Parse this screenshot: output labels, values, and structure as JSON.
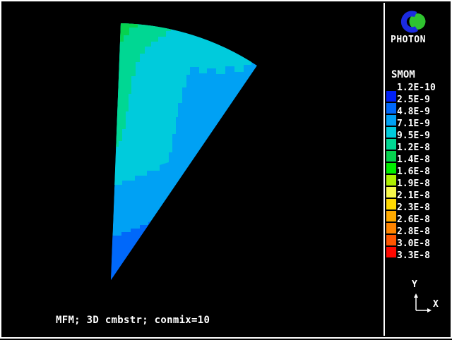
{
  "window": {
    "app": "PHOTON",
    "background": "#000000",
    "frame_color": "#ffffff"
  },
  "branding": {
    "logo_icon": "photon-logo-icon",
    "app_name": "PHOTON",
    "logo_colors": {
      "ring_blue": "#1b2be0",
      "ball_green": "#2fc32f"
    }
  },
  "legend": {
    "title": "SMOM",
    "labels": [
      "1.2E-10",
      "2.5E-9",
      "4.8E-9",
      "7.1E-9",
      "9.5E-9",
      "1.2E-8",
      "1.4E-8",
      "1.6E-8",
      "1.9E-8",
      "2.1E-8",
      "2.3E-8",
      "2.6E-8",
      "2.8E-8",
      "3.0E-8",
      "3.3E-8"
    ],
    "colors": [
      "#0020f8",
      "#0068fa",
      "#00a1f4",
      "#00cbdc",
      "#00d793",
      "#06d24f",
      "#00ee00",
      "#aef000",
      "#f8f84a",
      "#ffd800",
      "#ffaa00",
      "#ff8400",
      "#ff5500",
      "#ff0800"
    ]
  },
  "axes": {
    "x_label": "X",
    "y_label": "Y"
  },
  "caption": "MFM; 3D cmbstr; conmix=10",
  "chart_data": {
    "type": "heatmap",
    "subtype": "filled-contour",
    "variable": "SMOM",
    "title": "MFM; 3D cmbstr; conmix=10",
    "levels": [
      1.2e-10,
      2.5e-09,
      4.8e-09,
      7.1e-09,
      9.5e-09,
      1.2e-08,
      1.4e-08,
      1.6e-08,
      1.9e-08,
      2.1e-08,
      2.3e-08,
      2.6e-08,
      2.8e-08,
      3e-08,
      3.3e-08
    ],
    "palette": [
      "#0020f8",
      "#0068fa",
      "#00a1f4",
      "#00cbdc",
      "#00d793",
      "#06d24f",
      "#00ee00",
      "#aef000",
      "#f8f84a",
      "#ffd800",
      "#ffaa00",
      "#ff8400",
      "#ff5500",
      "#ff0800"
    ],
    "geometry": "fan-shaped 3D combustor sector in X-Y plane, apex at bottom-left, arc at top",
    "legend_position": "right",
    "bands_visible": [
      {
        "range": "2.5E-9 to 4.8E-9",
        "color": "#0068fa",
        "region": "apex (bottom tip) of sector"
      },
      {
        "range": "4.8E-9 to 7.1E-9",
        "color": "#00a1f4",
        "region": "right and lower-middle of sector (largest band)"
      },
      {
        "range": "7.1E-9 to 9.5E-9",
        "color": "#00cbdc",
        "region": "upper-left middle and strip under top arc"
      },
      {
        "range": "9.5E-9 to 1.2E-8",
        "color": "#00d793",
        "region": "left edge and top-left rim"
      },
      {
        "range": "1.2E-8 to 1.4E-8",
        "color": "#06d24f",
        "region": "small top-left corner patch"
      }
    ]
  }
}
